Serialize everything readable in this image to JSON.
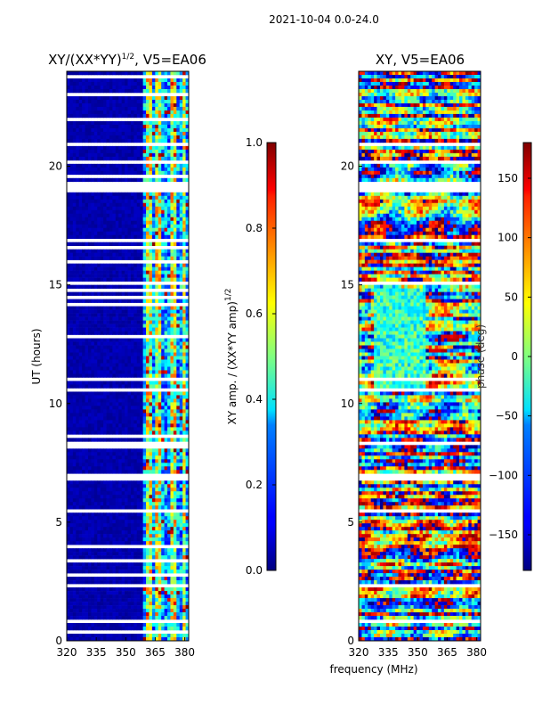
{
  "figure": {
    "suptitle": "2021-10-04 0.0-24.0",
    "xlabel": "frequency (MHz)"
  },
  "chart_data": [
    {
      "type": "heatmap",
      "title": "XY/(XX*YY)^1/2, V5=EA06",
      "title_main": "XY/(XX*YY)",
      "title_exp": "1/2",
      "title_tail": ", V5=EA06",
      "xlabel": "",
      "ylabel": "UT (hours)",
      "xlim": [
        320,
        382
      ],
      "ylim": [
        0,
        24
      ],
      "xticks": [
        "320",
        "335",
        "350",
        "365",
        "380"
      ],
      "xtick_values": [
        320,
        335,
        350,
        365,
        380
      ],
      "yticks": [
        "0",
        "5",
        "10",
        "15",
        "20"
      ],
      "ytick_values": [
        0,
        5,
        10,
        15,
        20
      ],
      "colorbar": {
        "label": "XY amp. / (XX*YY amp)^1/2",
        "label_main": "XY amp. / (XX*YY amp)",
        "label_exp": "1/2",
        "min": 0.0,
        "max": 1.0,
        "ticks": [
          "0.0",
          "0.2",
          "0.4",
          "0.6",
          "0.8",
          "1.0"
        ],
        "tick_values": [
          0.0,
          0.2,
          0.4,
          0.6,
          0.8,
          1.0
        ]
      }
    },
    {
      "type": "heatmap",
      "title": "XY, V5=EA06",
      "xlabel": "",
      "ylabel": "",
      "xlim": [
        320,
        382
      ],
      "ylim": [
        0,
        24
      ],
      "xticks": [
        "320",
        "335",
        "350",
        "365",
        "380"
      ],
      "xtick_values": [
        320,
        335,
        350,
        365,
        380
      ],
      "yticks": [
        "0",
        "5",
        "10",
        "15",
        "20"
      ],
      "ytick_values": [
        0,
        5,
        10,
        15,
        20
      ],
      "colorbar": {
        "label": "phase (deg)",
        "min": -180,
        "max": 180,
        "ticks": [
          "−150",
          "−100",
          "−50",
          "0",
          "50",
          "100",
          "150"
        ],
        "tick_values": [
          -150,
          -100,
          -50,
          0,
          50,
          100,
          150
        ]
      }
    }
  ]
}
